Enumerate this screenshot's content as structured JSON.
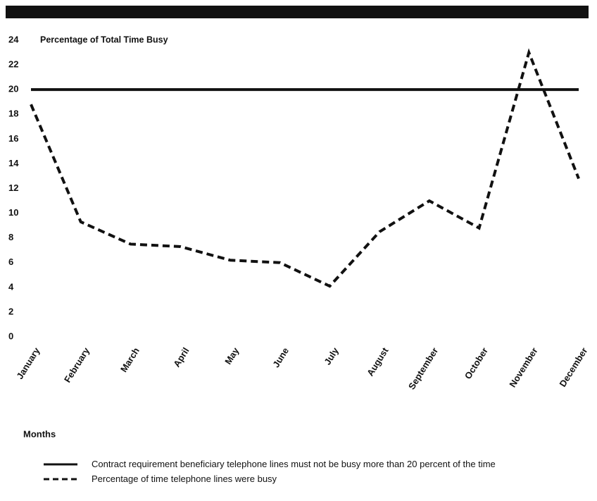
{
  "chart_data": {
    "type": "line",
    "y_label": "Percentage of Total Time Busy",
    "x_label": "Months",
    "categories": [
      "January",
      "February",
      "March",
      "April",
      "May",
      "June",
      "July",
      "August",
      "September",
      "October",
      "November",
      "December"
    ],
    "series": [
      {
        "name": "Contract requirement  beneficiary telephone lines must not be busy more than 20 percent of the time",
        "color": "#111111",
        "style": "solid",
        "values": [
          20,
          20,
          20,
          20,
          20,
          20,
          20,
          20,
          20,
          20,
          20,
          20
        ]
      },
      {
        "name": "Percentage of time telephone lines were busy",
        "color": "#111111",
        "style": "dashed",
        "values": [
          18.8,
          9.3,
          7.5,
          7.3,
          6.2,
          6.0,
          4.1,
          8.5,
          11.0,
          8.8,
          23.0,
          12.8
        ]
      }
    ],
    "ylim": [
      0,
      24
    ],
    "yticks": [
      0,
      2,
      4,
      6,
      8,
      10,
      12,
      14,
      16,
      18,
      20,
      22,
      24
    ],
    "grid": false
  }
}
